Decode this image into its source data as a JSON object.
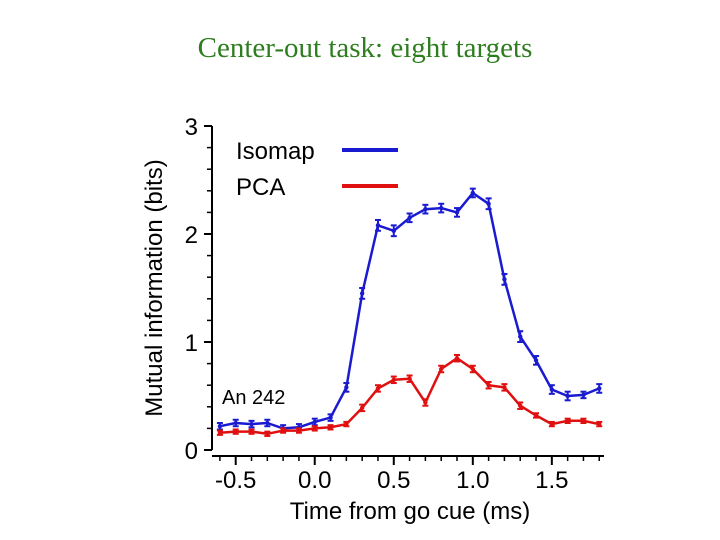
{
  "slide": {
    "title": "Center-out task: eight targets"
  },
  "chart_data": {
    "type": "line",
    "title": "",
    "xlabel": "Time from go cue (ms)",
    "ylabel": "Mutual information (bits)",
    "xlim": [
      -0.65,
      1.83
    ],
    "ylim": [
      0,
      3
    ],
    "xticks": [
      -0.5,
      0.0,
      0.5,
      1.0,
      1.5
    ],
    "xtick_labels": [
      "-0.5",
      "0.0",
      "0.5",
      "1.0",
      "1.5"
    ],
    "yticks": [
      0,
      1,
      2,
      3
    ],
    "ytick_labels": [
      "0",
      "1",
      "2",
      "3"
    ],
    "legend_position": "top-left",
    "annotation": "An 242",
    "x": [
      -0.6,
      -0.5,
      -0.4,
      -0.3,
      -0.2,
      -0.1,
      0.0,
      0.1,
      0.2,
      0.3,
      0.4,
      0.5,
      0.6,
      0.7,
      0.8,
      0.9,
      1.0,
      1.1,
      1.2,
      1.3,
      1.4,
      1.5,
      1.6,
      1.7,
      1.8
    ],
    "series": [
      {
        "name": "Isomap",
        "color": "#1a1ad0",
        "values": [
          0.22,
          0.25,
          0.24,
          0.25,
          0.2,
          0.21,
          0.26,
          0.3,
          0.58,
          1.45,
          2.08,
          2.03,
          2.15,
          2.23,
          2.24,
          2.2,
          2.38,
          2.28,
          1.58,
          1.05,
          0.83,
          0.56,
          0.5,
          0.51,
          0.57
        ],
        "errors": [
          0.03,
          0.03,
          0.03,
          0.03,
          0.03,
          0.03,
          0.03,
          0.03,
          0.04,
          0.05,
          0.05,
          0.05,
          0.04,
          0.04,
          0.04,
          0.04,
          0.04,
          0.05,
          0.05,
          0.05,
          0.04,
          0.04,
          0.04,
          0.03,
          0.04
        ]
      },
      {
        "name": "PCA",
        "color": "#e01010",
        "values": [
          0.16,
          0.17,
          0.17,
          0.15,
          0.18,
          0.18,
          0.2,
          0.21,
          0.24,
          0.39,
          0.57,
          0.65,
          0.66,
          0.44,
          0.75,
          0.85,
          0.75,
          0.6,
          0.58,
          0.41,
          0.32,
          0.24,
          0.27,
          0.27,
          0.24
        ],
        "errors": [
          0.02,
          0.02,
          0.02,
          0.02,
          0.02,
          0.02,
          0.02,
          0.02,
          0.02,
          0.03,
          0.03,
          0.03,
          0.03,
          0.03,
          0.03,
          0.03,
          0.03,
          0.03,
          0.03,
          0.03,
          0.02,
          0.02,
          0.02,
          0.02,
          0.02
        ]
      }
    ]
  }
}
